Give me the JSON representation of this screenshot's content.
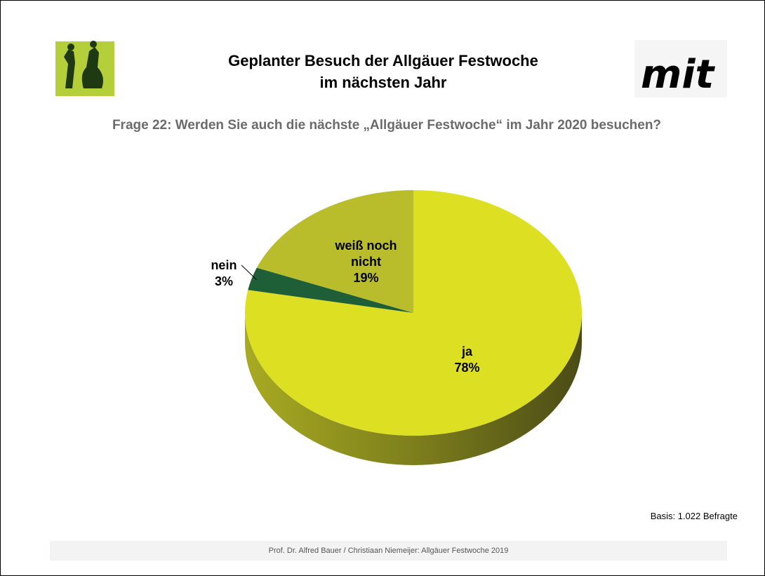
{
  "header": {
    "title": [
      "Geplanter Besuch der Allgäuer Festwoche",
      "im nächsten Jahr"
    ],
    "logo": "mit"
  },
  "chart_data": {
    "type": "pie",
    "title": "Frage 22: Werden Sie auch die nächste „Allgäuer Festwoche“ im Jahr 2020 besuchen?",
    "categories": [
      "ja",
      "nein",
      "weiß noch nicht"
    ],
    "values": [
      78,
      3,
      19
    ],
    "value_labels": [
      "78%",
      "3%",
      "19%"
    ],
    "colors": [
      "#dde022",
      "#1f5f37",
      "#b9bd2c"
    ],
    "annotations": [
      "Basis: 1.022 Befragte"
    ]
  },
  "footer": "Prof. Dr. Alfred Bauer  / Christiaan Niemeijer:  Allgäuer Festwoche 2019"
}
